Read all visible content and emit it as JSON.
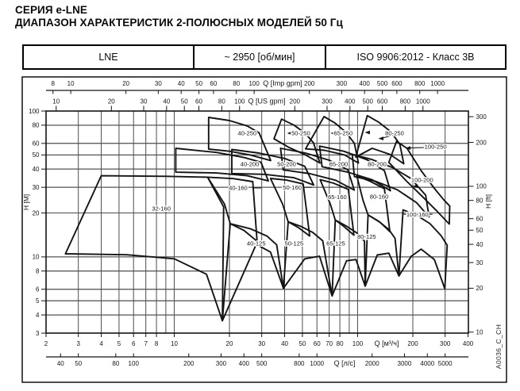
{
  "title": {
    "line1": "СЕРИЯ e-LNE",
    "line2": "ДИАПАЗОН ХАРАКТЕРИСТИК 2-ПОЛЮСНЫХ МОДЕЛЕЙ 50 Гц"
  },
  "spec_table": {
    "model": "LNE",
    "speed": "~ 2950 [об/мин]",
    "standard": "ISO 9906:2012 - Класс 3В"
  },
  "watermark": "A0036_C_CH",
  "colors": {
    "line": "#141414",
    "grid": "#4d4d4d",
    "frame": "#000000"
  },
  "chart_data": {
    "type": "area",
    "subtype": "pump-range-envelopes",
    "scale": "log-log",
    "title": "ДИАПАЗОН ХАРАКТЕРИСТИК 2-ПОЛЮСНЫХ МОДЕЛЕЙ 50 Гц",
    "x_range_m3h": [
      2,
      400
    ],
    "y_range_m": [
      3,
      100
    ],
    "grid": {
      "on": true,
      "v_m3h": [
        3,
        4,
        5,
        6,
        7,
        8,
        9,
        10,
        20,
        30,
        40,
        50,
        60,
        70,
        80,
        90,
        100,
        200,
        300
      ],
      "h_m": [
        4,
        5,
        6,
        8,
        10,
        20,
        30,
        40,
        50,
        60,
        80
      ]
    },
    "axes": {
      "top_imp": {
        "label": "Q [Imp gpm]",
        "unit_per_m3h": 3.6661,
        "ticks": [
          8,
          10,
          20,
          30,
          40,
          50,
          60,
          80,
          100,
          200,
          300,
          400,
          500,
          600,
          800,
          1000
        ]
      },
      "top_us": {
        "label": "Q [US gpm]",
        "unit_per_m3h": 4.4029,
        "ticks": [
          10,
          20,
          30,
          40,
          50,
          60,
          80,
          100,
          200,
          300,
          400,
          500,
          600,
          800,
          1000
        ]
      },
      "bottom_m3h": {
        "label": "Q [м³/ч]",
        "ticks": [
          2,
          3,
          4,
          5,
          6,
          7,
          8,
          10,
          20,
          30,
          40,
          50,
          60,
          70,
          80,
          100,
          200,
          300,
          400
        ]
      },
      "bottom_ls": {
        "label": "Q [л/с]",
        "unit_per_m3h": 16.667,
        "ticks": [
          40,
          50,
          80,
          100,
          200,
          300,
          400,
          500,
          800,
          1000,
          2000,
          3000,
          4000,
          5000
        ]
      },
      "left_m": {
        "label": "H [М]",
        "ticks": [
          3,
          4,
          5,
          6,
          8,
          10,
          20,
          30,
          40,
          50,
          60,
          80,
          100
        ]
      },
      "right_ft": {
        "label": "H [ft]",
        "m_per_ft": 0.3048,
        "ticks": [
          10,
          20,
          30,
          40,
          50,
          60,
          80,
          100,
          200,
          300
        ]
      }
    },
    "envelopes": [
      {
        "label": "32-160",
        "label_pos": [
          8.5,
          21.4
        ],
        "points": [
          [
            2.55,
            10.5
          ],
          [
            4.0,
            36
          ],
          [
            9,
            35.7
          ],
          [
            15.2,
            35.2
          ],
          [
            18.6,
            22
          ],
          [
            18.3,
            3.65
          ],
          [
            15,
            7.6
          ],
          [
            10,
            9.7
          ],
          [
            5.5,
            10.35
          ]
        ]
      },
      {
        "label": "40-125",
        "label_pos": [
          28,
          12.4
        ],
        "points": [
          [
            18.3,
            3.65
          ],
          [
            20.2,
            16.9
          ],
          [
            26,
            15.6
          ],
          [
            32,
            13.9
          ],
          [
            36.2,
            12.1
          ],
          [
            39.4,
            6.1
          ],
          [
            33.5,
            10.8
          ],
          [
            28,
            12.2
          ]
        ]
      },
      {
        "label": "40-160",
        "label_pos": [
          22.3,
          29.7
        ],
        "points": [
          [
            20.2,
            16.9
          ],
          [
            18.8,
            23
          ],
          [
            15.2,
            35.2
          ],
          [
            21,
            34.4
          ],
          [
            26.8,
            32.8
          ],
          [
            28.3,
            12.8
          ],
          [
            24,
            15.2
          ]
        ]
      },
      {
        "label": "40-200",
        "label_pos": [
          25.8,
          43.2
        ],
        "points": [
          [
            10.2,
            38.1
          ],
          [
            10.2,
            55.5
          ],
          [
            17,
            52
          ],
          [
            24,
            48
          ],
          [
            29.7,
            44.6
          ],
          [
            32.6,
            33.2
          ],
          [
            25,
            36
          ],
          [
            17,
            37.6
          ]
        ]
      },
      {
        "label": "40-250",
        "label_pos": [
          25,
          70.3
        ],
        "points": [
          [
            15.4,
            54.8
          ],
          [
            15.4,
            90.5
          ],
          [
            20,
            86
          ],
          [
            25,
            79
          ],
          [
            29,
            71
          ],
          [
            33.6,
            45.8
          ],
          [
            26,
            50
          ],
          [
            20,
            53
          ]
        ]
      },
      {
        "label": "50-125",
        "label_pos": [
          45,
          12.4
        ],
        "points": [
          [
            39.4,
            6.1
          ],
          [
            41.8,
            17.4
          ],
          [
            49,
            16.2
          ],
          [
            57,
            14.7
          ],
          [
            64.5,
            12.9
          ],
          [
            72.6,
            5.4
          ],
          [
            62,
            10.1
          ],
          [
            51.5,
            9.7
          ]
        ]
      },
      {
        "label": "50-160",
        "label_pos": [
          44,
          30
        ],
        "points": [
          [
            41.8,
            17.4
          ],
          [
            39,
            23
          ],
          [
            33.5,
            34.5
          ],
          [
            41,
            33.6
          ],
          [
            50.5,
            31.6
          ],
          [
            54.8,
            13.9
          ],
          [
            47.5,
            15.9
          ]
        ]
      },
      {
        "label": "50-200",
        "label_pos": [
          41,
          43.2
        ],
        "points": [
          [
            20.6,
            37.3
          ],
          [
            20.6,
            54.5
          ],
          [
            29,
            51.5
          ],
          [
            40,
            47.3
          ],
          [
            51.5,
            41.8
          ],
          [
            57.6,
            31.1
          ],
          [
            45,
            34.9
          ],
          [
            31,
            36.8
          ]
        ]
      },
      {
        "label": "50-250",
        "label_pos": [
          49,
          70.4
        ],
        "points": [
          [
            35,
            64.5
          ],
          [
            38.5,
            88
          ],
          [
            45,
            80
          ],
          [
            52,
            70
          ],
          [
            57.5,
            60.5
          ],
          [
            62.3,
            44
          ],
          [
            52,
            50
          ],
          [
            42,
            56.5
          ]
        ]
      },
      {
        "label": "65-125",
        "label_pos": [
          76,
          12.4
        ],
        "points": [
          [
            72.6,
            5.4
          ],
          [
            75.5,
            17.9
          ],
          [
            86,
            16.4
          ],
          [
            99,
            14.6
          ],
          [
            109,
            12.8
          ],
          [
            110,
            6.3
          ],
          [
            98,
            9.6
          ],
          [
            87,
            9.4
          ]
        ]
      },
      {
        "label": "65-160",
        "label_pos": [
          77.5,
          25.8
        ],
        "points": [
          [
            75.5,
            17.9
          ],
          [
            71,
            23
          ],
          [
            62.5,
            33.8
          ],
          [
            74,
            32
          ],
          [
            89,
            29
          ],
          [
            95.5,
            14.1
          ],
          [
            84,
            16.2
          ]
        ]
      },
      {
        "label": "65-200",
        "label_pos": [
          78.7,
          43.2
        ],
        "points": [
          [
            39.3,
            39.5
          ],
          [
            38,
            55.5
          ],
          [
            52,
            51.5
          ],
          [
            70,
            46
          ],
          [
            88.5,
            39.5
          ],
          [
            95.8,
            28.7
          ],
          [
            76,
            33.5
          ],
          [
            55,
            37.2
          ]
        ]
      },
      {
        "label": "65-250",
        "label_pos": [
          83.5,
          70.4
        ],
        "points": [
          [
            52,
            55
          ],
          [
            65.6,
            91.6
          ],
          [
            75,
            83
          ],
          [
            86,
            72
          ],
          [
            96,
            60
          ],
          [
            101,
            44
          ],
          [
            85,
            50
          ],
          [
            66,
            53.8
          ]
        ]
      },
      {
        "label": "80-125",
        "label_pos": [
          112,
          13.8
        ],
        "points": [
          [
            110,
            6.3
          ],
          [
            114,
            19.4
          ],
          [
            130,
            17.6
          ],
          [
            148,
            15.4
          ],
          [
            160,
            13.4
          ],
          [
            168,
            7.4
          ],
          [
            148,
            10.6
          ],
          [
            128,
            10.3
          ]
        ]
      },
      {
        "label": "80-160",
        "label_pos": [
          131,
          25.9
        ],
        "points": [
          [
            114,
            19.4
          ],
          [
            107,
            24.5
          ],
          [
            99,
            35.8
          ],
          [
            117,
            33
          ],
          [
            140,
            29.3
          ],
          [
            150,
            14.9
          ],
          [
            133,
            17.2
          ]
        ]
      },
      {
        "label": "80-200",
        "label_pos": [
          127.7,
          43.2
        ],
        "points": [
          [
            64,
            41.5
          ],
          [
            62,
            57.5
          ],
          [
            84,
            53
          ],
          [
            112,
            46.5
          ],
          [
            140,
            39
          ],
          [
            151,
            28.4
          ],
          [
            120,
            33.8
          ],
          [
            88,
            38.2
          ]
        ]
      },
      {
        "label": "80-250",
        "label_pos": [
          159,
          70.4
        ],
        "points": [
          [
            97.7,
            48.4
          ],
          [
            113,
            93
          ],
          [
            130,
            84
          ],
          [
            152,
            72
          ],
          [
            170,
            59
          ],
          [
            178.5,
            43.5
          ],
          [
            150,
            50.5
          ],
          [
            120,
            55.5
          ]
        ]
      },
      {
        "label": "100-160",
        "label_pos": [
          212,
          19.6
        ],
        "points": [
          [
            168,
            7.4
          ],
          [
            177,
            21
          ],
          [
            210,
            19.3
          ],
          [
            248,
            16.9
          ],
          [
            285,
            14
          ],
          [
            308,
            12
          ],
          [
            299,
            6.05
          ],
          [
            262,
            9.6
          ],
          [
            222,
            11.3
          ],
          [
            196,
            10.1
          ]
        ]
      },
      {
        "label": "100-200",
        "label_pos": [
          225,
          33.7
        ],
        "points": [
          [
            96,
            35.5
          ],
          [
            93.5,
            50.5
          ],
          [
            120,
            46.5
          ],
          [
            155,
            41
          ],
          [
            195,
            34.5
          ],
          [
            235,
            26.5
          ],
          [
            245,
            18.8
          ],
          [
            210,
            23.5
          ],
          [
            165,
            28.8
          ],
          [
            125,
            33
          ]
        ]
      },
      {
        "label": "100-250",
        "label_pos": [
          266,
          56.9
        ],
        "points": [
          [
            148,
            44.5
          ],
          [
            163,
            62
          ],
          [
            186,
            55.5
          ],
          [
            222,
            39
          ],
          [
            262,
            29.5
          ],
          [
            296,
            24.5
          ],
          [
            318,
            22.3
          ],
          [
            316,
            16.8
          ],
          [
            272,
            20.5
          ],
          [
            225,
            26
          ],
          [
            185,
            33
          ]
        ]
      }
    ],
    "leaders": [
      [
        [
          189,
          55.8
        ],
        [
          242,
          56.3
        ]
      ],
      [
        [
          134,
          64.8
        ],
        [
          151,
          67.6
        ]
      ],
      [
        [
          176,
          19.6
        ],
        [
          196,
          19.6
        ]
      ],
      [
        [
          229,
          19.6
        ],
        [
          256,
          19.6
        ]
      ],
      [
        [
          49.8,
          30
        ],
        [
          56.5,
          30
        ]
      ],
      [
        [
          26.8,
          29.7
        ],
        [
          29.8,
          29.7
        ]
      ]
    ],
    "markers": [
      [
        42.6,
        70.4
      ],
      [
        73.5,
        70.4
      ],
      [
        113,
        71.3
      ],
      [
        134,
        64.8
      ],
      [
        188,
        55.8
      ],
      [
        206,
        30.5
      ]
    ]
  }
}
